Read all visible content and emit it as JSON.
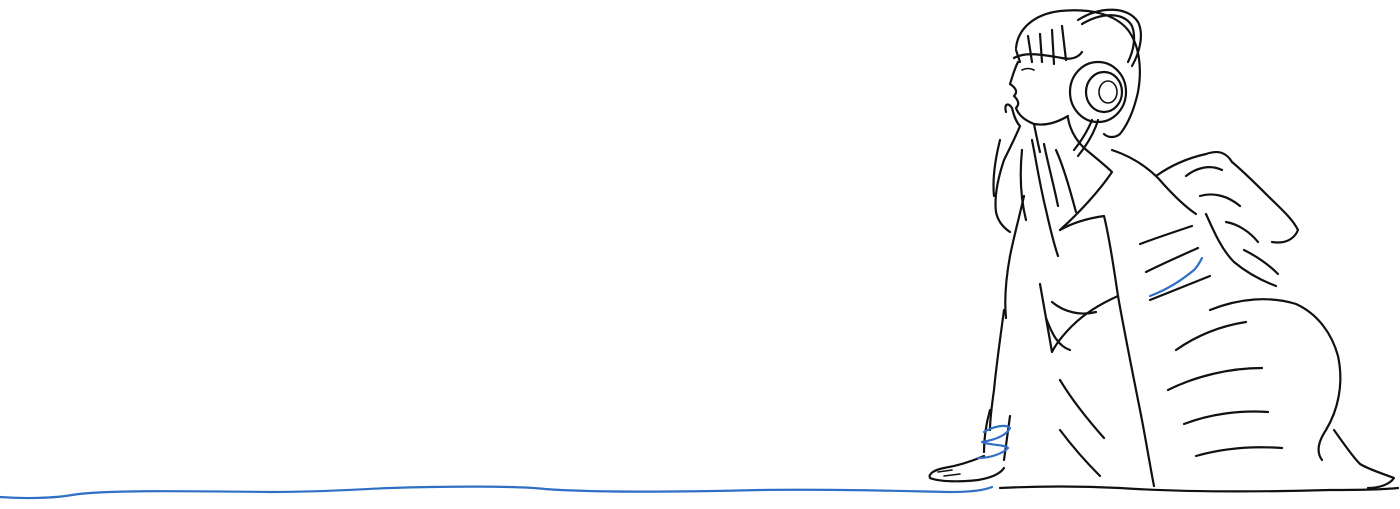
{
  "scene": {
    "subject": "girl-with-headphones-line-drawing",
    "colors": {
      "background": "#ffffff",
      "ink": "#111111",
      "cable": "#2f6fc4"
    },
    "icons": [
      "headphones-icon"
    ]
  }
}
